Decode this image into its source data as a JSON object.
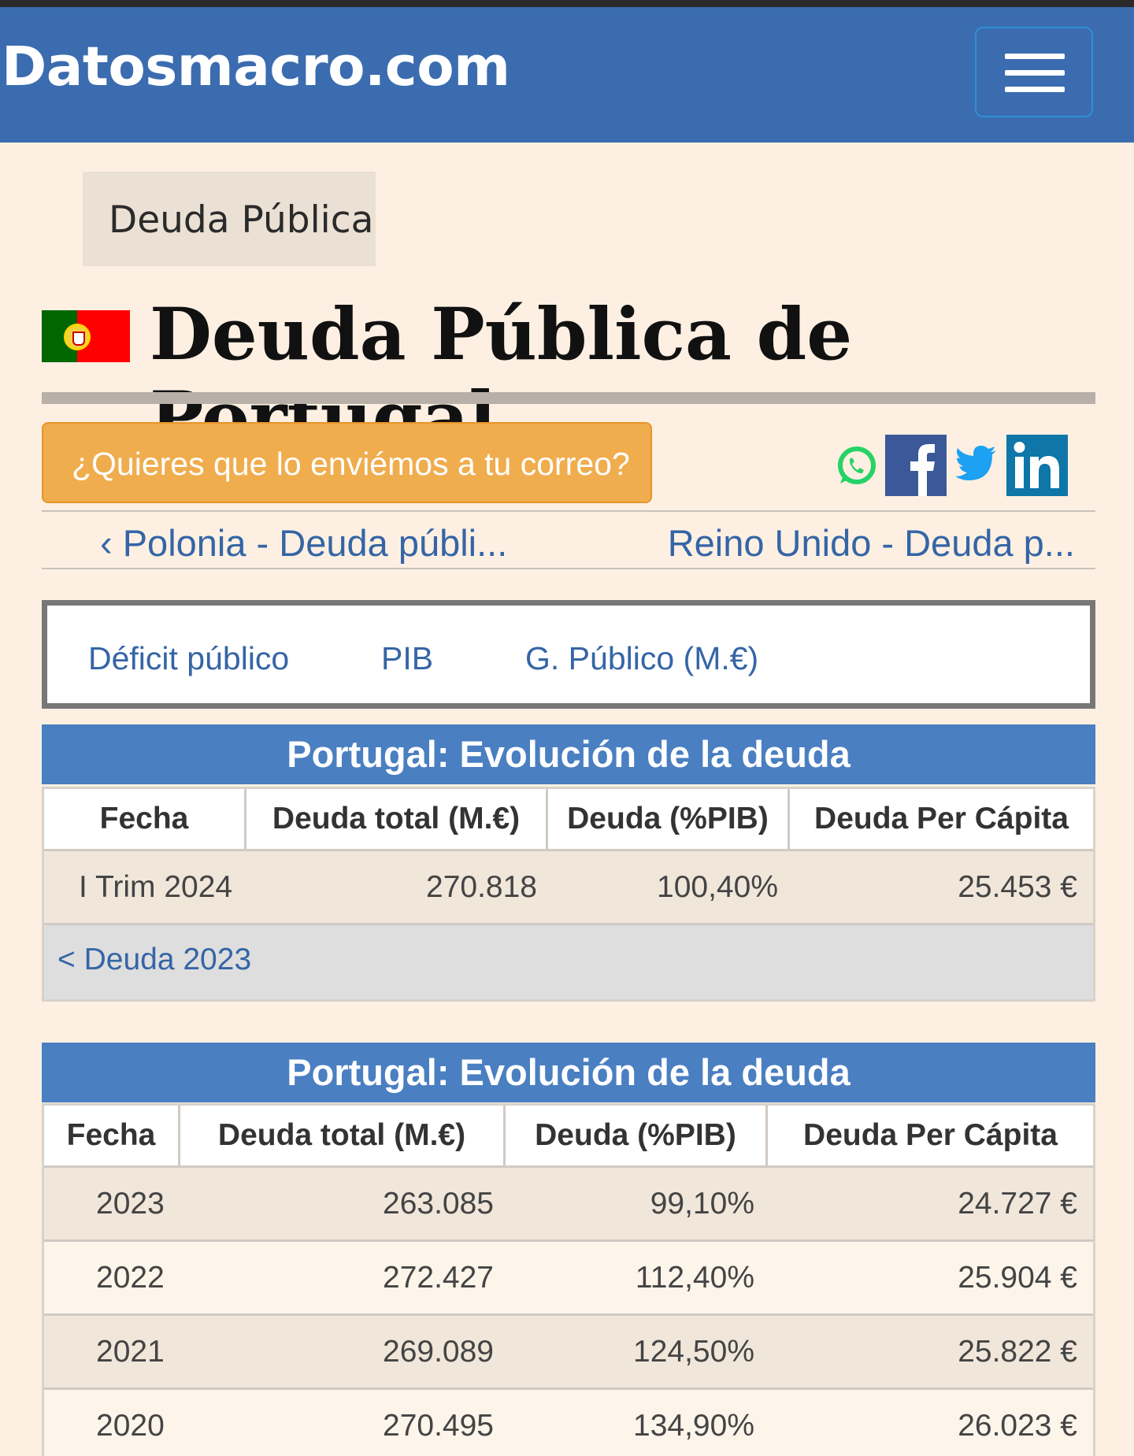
{
  "header": {
    "logo": "Datosmacro.com"
  },
  "breadcrumb": {
    "label": "Deuda Pública"
  },
  "page": {
    "title": "Deuda Pública de Portugal"
  },
  "email_button": {
    "label": "¿Quieres que lo enviémos a tu correo?"
  },
  "share": {
    "icons": [
      "whatsapp-icon",
      "facebook-icon",
      "twitter-icon",
      "linkedin-icon"
    ]
  },
  "nav": {
    "prev": "‹ Polonia - Deuda públi...",
    "next": "Reino Unido - Deuda p..."
  },
  "tabs": [
    "Déficit público",
    "PIB",
    "G. Público (M.€)"
  ],
  "latest_table": {
    "title": "Portugal: Evolución de la deuda",
    "columns": [
      "Fecha",
      "Deuda total (M.€)",
      "Deuda (%PIB)",
      "Deuda Per Cápita"
    ],
    "rows": [
      {
        "fecha": "I Trim 2024",
        "total": "270.818",
        "pib": "100,40%",
        "per_capita": "25.453 €"
      }
    ],
    "footer_link": "< Deuda 2023"
  },
  "annual_table": {
    "title": "Portugal: Evolución de la deuda",
    "columns": [
      "Fecha",
      "Deuda total (M.€)",
      "Deuda (%PIB)",
      "Deuda Per Cápita"
    ],
    "rows": [
      {
        "fecha": "2023",
        "total": "263.085",
        "pib": "99,10%",
        "per_capita": "24.727 €"
      },
      {
        "fecha": "2022",
        "total": "272.427",
        "pib": "112,40%",
        "per_capita": "25.904 €"
      },
      {
        "fecha": "2021",
        "total": "269.089",
        "pib": "124,50%",
        "per_capita": "25.822 €"
      },
      {
        "fecha": "2020",
        "total": "270.495",
        "pib": "134,90%",
        "per_capita": "26.023 €"
      }
    ]
  },
  "colors": {
    "header": "#3b6caf",
    "table_header": "#4a7fc1",
    "email_button": "#f0ad4e",
    "link": "#3565a6",
    "background": "#fdf0e2"
  }
}
